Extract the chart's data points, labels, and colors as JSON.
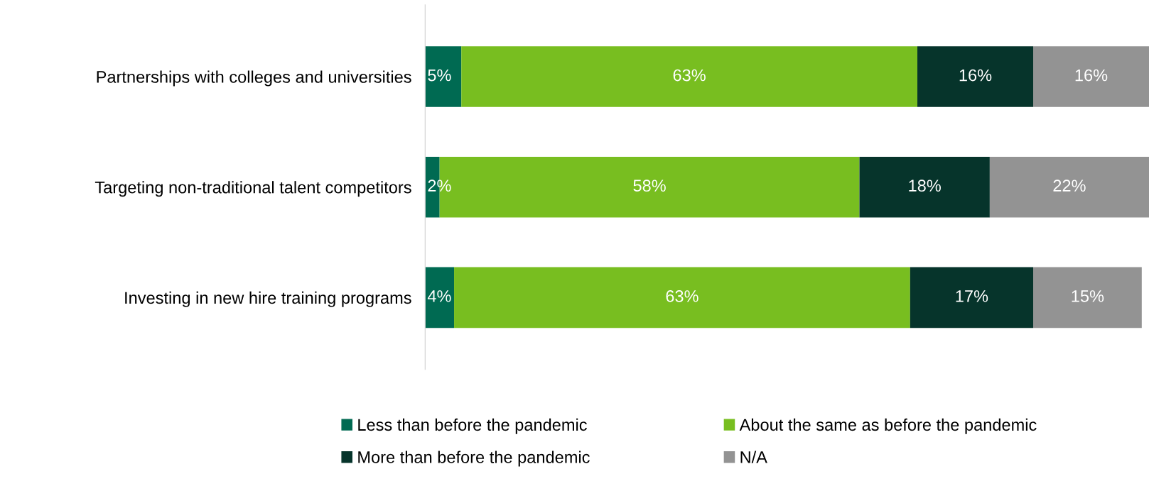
{
  "chart_data": {
    "type": "bar",
    "orientation": "horizontal",
    "stacked": true,
    "tick_labels": "y",
    "legend": "bottom",
    "grid": false,
    "categories": [
      "Partnerships with colleges and universities",
      "Targeting non-traditional talent competitors",
      "Investing in new hire training programs"
    ],
    "series": [
      {
        "name": "Less than before the pandemic",
        "color": "#006a52",
        "values": [
          5,
          2,
          4
        ],
        "value_labels": [
          "5%",
          "2%",
          "4%"
        ]
      },
      {
        "name": "About the same as before the pandemic",
        "color": "#78be20",
        "values": [
          63,
          58,
          63
        ],
        "value_labels": [
          "63%",
          "58%",
          "63%"
        ]
      },
      {
        "name": "More than before the pandemic",
        "color": "#06342b",
        "values": [
          16,
          18,
          17
        ],
        "value_labels": [
          "16%",
          "18%",
          "17%"
        ]
      },
      {
        "name": "N/A",
        "color": "#939393",
        "values": [
          16,
          22,
          15
        ],
        "value_labels": [
          "16%",
          "22%",
          "15%"
        ]
      }
    ]
  }
}
